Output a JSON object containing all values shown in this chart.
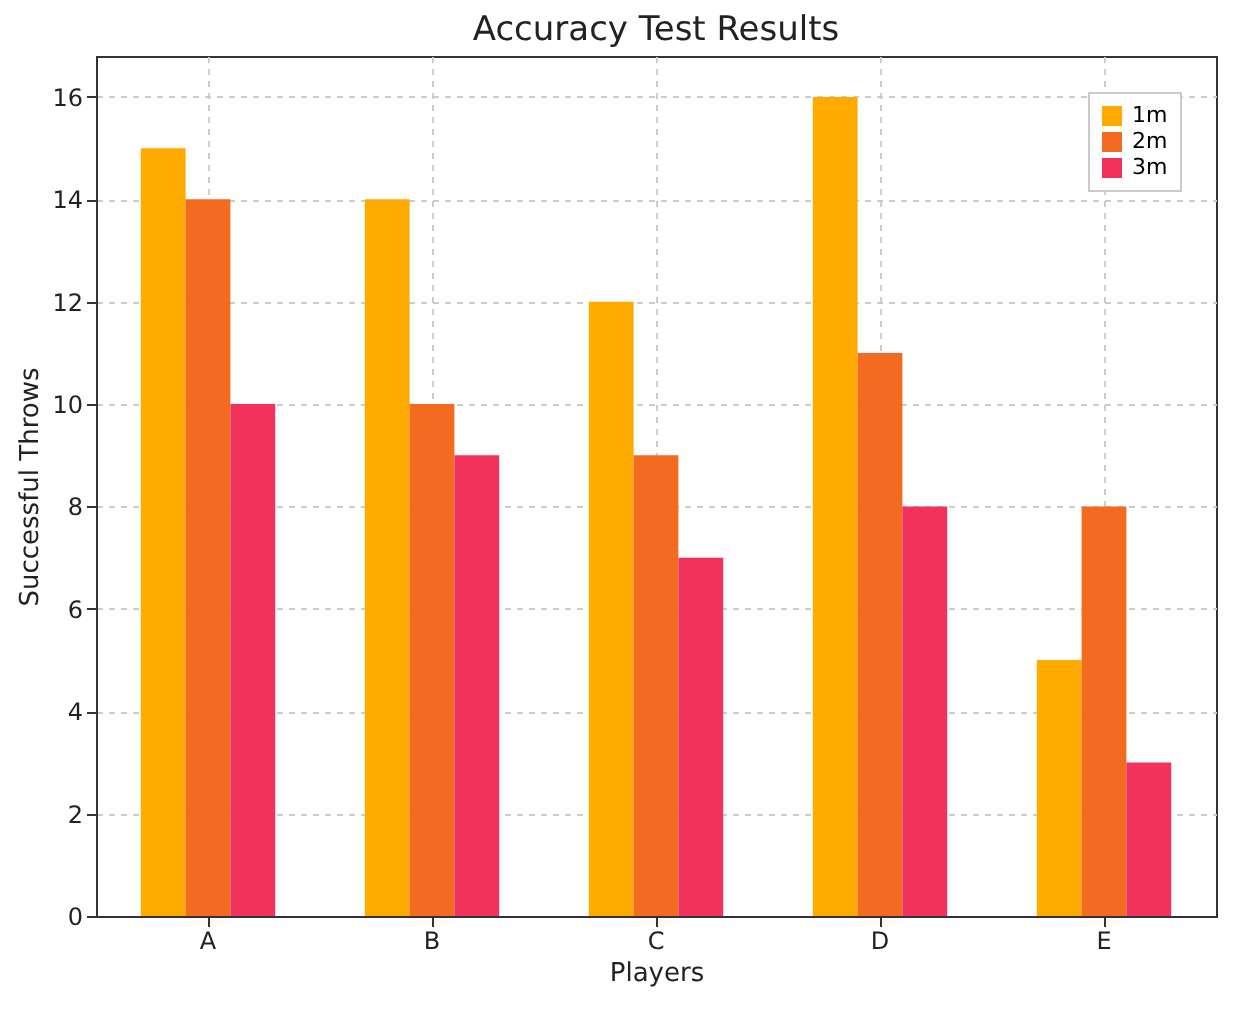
{
  "chart_data": {
    "type": "bar",
    "title": "Accuracy Test Results",
    "xlabel": "Players",
    "ylabel": "Successful Throws",
    "categories": [
      "A",
      "B",
      "C",
      "D",
      "E"
    ],
    "series": [
      {
        "name": "1m",
        "color": "#ffaa00",
        "values": [
          15,
          14,
          12,
          16,
          5
        ]
      },
      {
        "name": "2m",
        "color": "#f26b21",
        "values": [
          14,
          10,
          9,
          11,
          8
        ]
      },
      {
        "name": "3m",
        "color": "#f2325a",
        "values": [
          10,
          9,
          7,
          8,
          3
        ]
      }
    ],
    "ylim": [
      0,
      16.8
    ],
    "yticks": [
      0,
      2,
      4,
      6,
      8,
      10,
      12,
      14,
      16
    ],
    "grid": true,
    "legend": "top right"
  }
}
